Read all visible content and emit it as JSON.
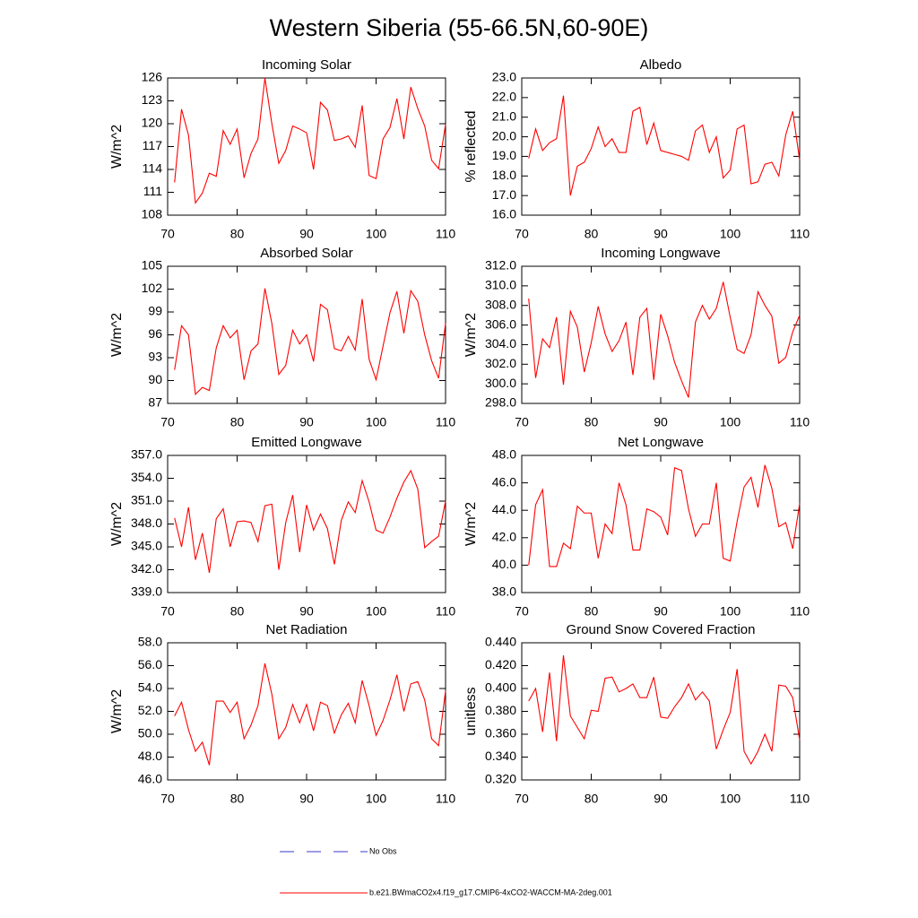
{
  "title": "Western Siberia (55-66.5N,60-90E)",
  "legend": [
    {
      "name": "No Obs",
      "color": "#3a3acc",
      "dash": true
    },
    {
      "name": "b.e21.BWmaCO2x4.f19_g17.CMIP6-4xCO2-WACCM-MA-2deg.001",
      "color": "#ff0000",
      "dash": false
    }
  ],
  "chart_data": [
    {
      "type": "line",
      "title": "Incoming Solar",
      "ylabel": "W/m^2",
      "color": "#ff0000",
      "x": [
        71,
        72,
        73,
        74,
        75,
        76,
        77,
        78,
        79,
        80,
        81,
        82,
        83,
        84,
        85,
        86,
        87,
        88,
        89,
        90,
        91,
        92,
        93,
        94,
        95,
        96,
        97,
        98,
        99,
        100,
        101,
        102,
        103,
        104,
        105,
        106,
        107,
        108,
        109,
        110
      ],
      "values": [
        112.3,
        121.9,
        118.5,
        109.6,
        110.9,
        113.5,
        113.1,
        119.1,
        117.3,
        119.3,
        112.9,
        116.1,
        118.0,
        126.0,
        120.0,
        114.8,
        116.5,
        119.7,
        119.3,
        118.8,
        114.0,
        122.8,
        121.8,
        117.8,
        118.0,
        118.4,
        116.9,
        122.4,
        113.2,
        112.8,
        118.0,
        119.5,
        123.3,
        118.0,
        124.8,
        122.0,
        119.7,
        115.2,
        114.1,
        119.9
      ],
      "xlim": [
        70,
        110
      ],
      "xticks": [
        70,
        80,
        90,
        100,
        110
      ],
      "ylim": [
        108,
        126
      ],
      "yticks": [
        108,
        111,
        114,
        117,
        120,
        123,
        126
      ]
    },
    {
      "type": "line",
      "title": "Albedo",
      "ylabel": "% reflected",
      "color": "#ff0000",
      "x": [
        71,
        72,
        73,
        74,
        75,
        76,
        77,
        78,
        79,
        80,
        81,
        82,
        83,
        84,
        85,
        86,
        87,
        88,
        89,
        90,
        91,
        92,
        93,
        94,
        95,
        96,
        97,
        98,
        99,
        100,
        101,
        102,
        103,
        104,
        105,
        106,
        107,
        108,
        109,
        110
      ],
      "values": [
        18.9,
        20.4,
        19.3,
        19.7,
        19.9,
        22.1,
        17.0,
        18.5,
        18.7,
        19.4,
        20.5,
        19.5,
        19.9,
        19.2,
        19.2,
        21.3,
        21.5,
        19.6,
        20.7,
        19.3,
        19.2,
        19.1,
        19.0,
        18.8,
        20.3,
        20.6,
        19.2,
        20.0,
        17.9,
        18.3,
        20.4,
        20.6,
        17.6,
        17.7,
        18.6,
        18.7,
        18.0,
        20.1,
        21.3,
        18.8
      ],
      "xlim": [
        70,
        110
      ],
      "xticks": [
        70,
        80,
        90,
        100,
        110
      ],
      "ylim": [
        16,
        23
      ],
      "yticks": [
        {
          "value": 16,
          "label": "16.0"
        },
        {
          "value": 17,
          "label": "17.0"
        },
        {
          "value": 18,
          "label": "18.0"
        },
        {
          "value": 19,
          "label": "19.0"
        },
        {
          "value": 20,
          "label": "20.0"
        },
        {
          "value": 21,
          "label": "21.0"
        },
        {
          "value": 22,
          "label": "22.0"
        },
        {
          "value": 23,
          "label": "23.0"
        }
      ]
    },
    {
      "type": "line",
      "title": "Absorbed Solar",
      "ylabel": "W/m^2",
      "color": "#ff0000",
      "x": [
        71,
        72,
        73,
        74,
        75,
        76,
        77,
        78,
        79,
        80,
        81,
        82,
        83,
        84,
        85,
        86,
        87,
        88,
        89,
        90,
        91,
        92,
        93,
        94,
        95,
        96,
        97,
        98,
        99,
        100,
        101,
        102,
        103,
        104,
        105,
        106,
        107,
        108,
        109,
        110
      ],
      "values": [
        91.4,
        97.2,
        96.0,
        88.2,
        89.1,
        88.7,
        94.3,
        97.2,
        95.6,
        96.6,
        90.1,
        93.9,
        94.8,
        102.1,
        97.5,
        90.8,
        92.0,
        96.6,
        94.8,
        96.0,
        92.5,
        100.0,
        99.3,
        94.2,
        93.9,
        95.8,
        94.0,
        100.7,
        92.8,
        90.1,
        94.5,
        98.9,
        101.7,
        96.2,
        101.8,
        100.4,
        96.0,
        92.6,
        90.3,
        97.5
      ],
      "xlim": [
        70,
        110
      ],
      "xticks": [
        70,
        80,
        90,
        100,
        110
      ],
      "ylim": [
        87,
        105
      ],
      "yticks": [
        87,
        90,
        93,
        96,
        99,
        102,
        105
      ]
    },
    {
      "type": "line",
      "title": "Incoming Longwave",
      "ylabel": "W/m^2",
      "color": "#ff0000",
      "x": [
        71,
        72,
        73,
        74,
        75,
        76,
        77,
        78,
        79,
        80,
        81,
        82,
        83,
        84,
        85,
        86,
        87,
        88,
        89,
        90,
        91,
        92,
        93,
        94,
        95,
        96,
        97,
        98,
        99,
        100,
        101,
        102,
        103,
        104,
        105,
        106,
        107,
        108,
        109,
        110
      ],
      "values": [
        308.7,
        300.6,
        304.6,
        303.7,
        306.8,
        299.9,
        307.4,
        305.8,
        301.2,
        304.2,
        307.9,
        305.1,
        303.3,
        304.4,
        306.3,
        300.9,
        306.8,
        307.7,
        300.4,
        307.1,
        304.9,
        302.2,
        300.3,
        298.6,
        306.3,
        308.0,
        306.6,
        307.7,
        310.4,
        306.8,
        303.5,
        303.1,
        305.0,
        309.4,
        308.0,
        306.9,
        302.1,
        302.7,
        305.3,
        307.0
      ],
      "xlim": [
        70,
        110
      ],
      "xticks": [
        70,
        80,
        90,
        100,
        110
      ],
      "ylim": [
        298,
        312
      ],
      "yticks": [
        {
          "value": 298,
          "label": "298.0"
        },
        {
          "value": 300,
          "label": "300.0"
        },
        {
          "value": 302,
          "label": "302.0"
        },
        {
          "value": 304,
          "label": "304.0"
        },
        {
          "value": 306,
          "label": "306.0"
        },
        {
          "value": 308,
          "label": "308.0"
        },
        {
          "value": 310,
          "label": "310.0"
        },
        {
          "value": 312,
          "label": "312.0"
        }
      ]
    },
    {
      "type": "line",
      "title": "Emitted Longwave",
      "ylabel": "W/m^2",
      "color": "#ff0000",
      "x": [
        71,
        72,
        73,
        74,
        75,
        76,
        77,
        78,
        79,
        80,
        81,
        82,
        83,
        84,
        85,
        86,
        87,
        88,
        89,
        90,
        91,
        92,
        93,
        94,
        95,
        96,
        97,
        98,
        99,
        100,
        101,
        102,
        103,
        104,
        105,
        106,
        107,
        108,
        109,
        110
      ],
      "values": [
        348.8,
        345.0,
        350.2,
        343.3,
        346.8,
        341.6,
        348.7,
        350.0,
        345.0,
        348.3,
        348.4,
        348.2,
        345.7,
        350.4,
        350.6,
        342.0,
        348.2,
        351.8,
        344.3,
        350.5,
        347.2,
        349.3,
        347.4,
        342.7,
        348.5,
        350.9,
        349.5,
        353.7,
        350.9,
        347.2,
        346.8,
        348.9,
        351.4,
        353.5,
        355.0,
        352.6,
        344.9,
        345.7,
        346.4,
        351.0
      ],
      "xlim": [
        70,
        110
      ],
      "xticks": [
        70,
        80,
        90,
        100,
        110
      ],
      "ylim": [
        339,
        357
      ],
      "yticks": [
        {
          "value": 339,
          "label": "339.0"
        },
        {
          "value": 342,
          "label": "342.0"
        },
        {
          "value": 345,
          "label": "345.0"
        },
        {
          "value": 348,
          "label": "348.0"
        },
        {
          "value": 351,
          "label": "351.0"
        },
        {
          "value": 354,
          "label": "354.0"
        },
        {
          "value": 357,
          "label": "357.0"
        }
      ]
    },
    {
      "type": "line",
      "title": "Net Longwave",
      "ylabel": "W/m^2",
      "color": "#ff0000",
      "x": [
        71,
        72,
        73,
        74,
        75,
        76,
        77,
        78,
        79,
        80,
        81,
        82,
        83,
        84,
        85,
        86,
        87,
        88,
        89,
        90,
        91,
        92,
        93,
        94,
        95,
        96,
        97,
        98,
        99,
        100,
        101,
        102,
        103,
        104,
        105,
        106,
        107,
        108,
        109,
        110
      ],
      "values": [
        40.0,
        44.4,
        45.5,
        39.9,
        39.9,
        41.6,
        41.2,
        44.3,
        43.8,
        43.8,
        40.5,
        43.0,
        42.3,
        46.0,
        44.4,
        41.1,
        41.1,
        44.1,
        43.9,
        43.5,
        42.2,
        47.1,
        46.9,
        44.1,
        42.1,
        43.0,
        43.0,
        46.0,
        40.5,
        40.3,
        43.2,
        45.7,
        46.4,
        44.2,
        47.3,
        45.6,
        42.8,
        43.1,
        41.2,
        44.5
      ],
      "xlim": [
        70,
        110
      ],
      "xticks": [
        70,
        80,
        90,
        100,
        110
      ],
      "ylim": [
        38,
        48
      ],
      "yticks": [
        {
          "value": 38,
          "label": "38.0"
        },
        {
          "value": 40,
          "label": "40.0"
        },
        {
          "value": 42,
          "label": "42.0"
        },
        {
          "value": 44,
          "label": "44.0"
        },
        {
          "value": 46,
          "label": "46.0"
        },
        {
          "value": 48,
          "label": "48.0"
        }
      ]
    },
    {
      "type": "line",
      "title": "Net Radiation",
      "ylabel": "W/m^2",
      "color": "#ff0000",
      "x": [
        71,
        72,
        73,
        74,
        75,
        76,
        77,
        78,
        79,
        80,
        81,
        82,
        83,
        84,
        85,
        86,
        87,
        88,
        89,
        90,
        91,
        92,
        93,
        94,
        95,
        96,
        97,
        98,
        99,
        100,
        101,
        102,
        103,
        104,
        105,
        106,
        107,
        108,
        109,
        110
      ],
      "values": [
        51.6,
        52.8,
        50.4,
        48.5,
        49.3,
        47.3,
        52.9,
        52.9,
        51.9,
        52.8,
        49.6,
        50.8,
        52.5,
        56.2,
        53.5,
        49.6,
        50.6,
        52.6,
        51.0,
        52.6,
        50.3,
        52.8,
        52.5,
        50.1,
        51.7,
        52.7,
        51.0,
        54.7,
        52.5,
        49.9,
        51.2,
        53.0,
        55.2,
        52.0,
        54.4,
        54.6,
        53.0,
        49.6,
        49.0,
        53.8
      ],
      "xlim": [
        70,
        110
      ],
      "xticks": [
        70,
        80,
        90,
        100,
        110
      ],
      "ylim": [
        46,
        58
      ],
      "yticks": [
        {
          "value": 46,
          "label": "46.0"
        },
        {
          "value": 48,
          "label": "48.0"
        },
        {
          "value": 50,
          "label": "50.0"
        },
        {
          "value": 52,
          "label": "52.0"
        },
        {
          "value": 54,
          "label": "54.0"
        },
        {
          "value": 56,
          "label": "56.0"
        },
        {
          "value": 58,
          "label": "58.0"
        }
      ]
    },
    {
      "type": "line",
      "title": "Ground Snow Covered Fraction",
      "ylabel": "unitless",
      "color": "#ff0000",
      "x": [
        71,
        72,
        73,
        74,
        75,
        76,
        77,
        78,
        79,
        80,
        81,
        82,
        83,
        84,
        85,
        86,
        87,
        88,
        89,
        90,
        91,
        92,
        93,
        94,
        95,
        96,
        97,
        98,
        99,
        100,
        101,
        102,
        103,
        104,
        105,
        106,
        107,
        108,
        109,
        110
      ],
      "values": [
        0.389,
        0.4,
        0.362,
        0.414,
        0.354,
        0.429,
        0.376,
        0.366,
        0.356,
        0.381,
        0.38,
        0.409,
        0.41,
        0.397,
        0.4,
        0.404,
        0.392,
        0.392,
        0.41,
        0.375,
        0.374,
        0.384,
        0.392,
        0.404,
        0.39,
        0.397,
        0.389,
        0.347,
        0.364,
        0.379,
        0.417,
        0.345,
        0.334,
        0.345,
        0.36,
        0.345,
        0.403,
        0.402,
        0.392,
        0.355
      ],
      "xlim": [
        70,
        110
      ],
      "xticks": [
        70,
        80,
        90,
        100,
        110
      ],
      "ylim": [
        0.32,
        0.44
      ],
      "yticks": [
        {
          "value": 0.32,
          "label": "0.320"
        },
        {
          "value": 0.34,
          "label": "0.340"
        },
        {
          "value": 0.36,
          "label": "0.360"
        },
        {
          "value": 0.38,
          "label": "0.380"
        },
        {
          "value": 0.4,
          "label": "0.400"
        },
        {
          "value": 0.42,
          "label": "0.420"
        },
        {
          "value": 0.44,
          "label": "0.440"
        }
      ]
    }
  ]
}
